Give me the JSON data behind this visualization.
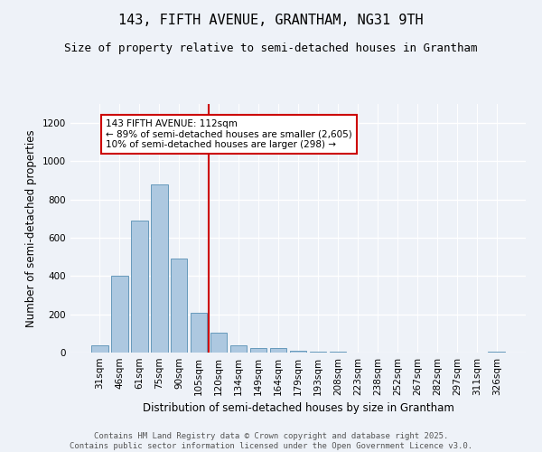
{
  "title1": "143, FIFTH AVENUE, GRANTHAM, NG31 9TH",
  "title2": "Size of property relative to semi-detached houses in Grantham",
  "xlabel": "Distribution of semi-detached houses by size in Grantham",
  "ylabel": "Number of semi-detached properties",
  "categories": [
    "31sqm",
    "46sqm",
    "61sqm",
    "75sqm",
    "90sqm",
    "105sqm",
    "120sqm",
    "134sqm",
    "149sqm",
    "164sqm",
    "179sqm",
    "193sqm",
    "208sqm",
    "223sqm",
    "238sqm",
    "252sqm",
    "267sqm",
    "282sqm",
    "297sqm",
    "311sqm",
    "326sqm"
  ],
  "values": [
    40,
    400,
    690,
    880,
    490,
    210,
    105,
    40,
    25,
    25,
    10,
    5,
    3,
    2,
    1,
    1,
    1,
    0,
    0,
    0,
    5
  ],
  "bar_color": "#adc8e0",
  "bar_edge_color": "#6699bb",
  "vline_x": 5.5,
  "vline_color": "#cc0000",
  "annotation_text": "143 FIFTH AVENUE: 112sqm\n← 89% of semi-detached houses are smaller (2,605)\n10% of semi-detached houses are larger (298) →",
  "annotation_box_color": "#ffffff",
  "annotation_box_edge": "#cc0000",
  "ylim": [
    0,
    1300
  ],
  "yticks": [
    0,
    200,
    400,
    600,
    800,
    1000,
    1200
  ],
  "footer": "Contains HM Land Registry data © Crown copyright and database right 2025.\nContains public sector information licensed under the Open Government Licence v3.0.",
  "bg_color": "#eef2f8",
  "plot_bg_color": "#eef2f8",
  "title_fontsize": 11,
  "subtitle_fontsize": 9,
  "tick_fontsize": 7.5,
  "label_fontsize": 8.5,
  "footer_fontsize": 6.5
}
